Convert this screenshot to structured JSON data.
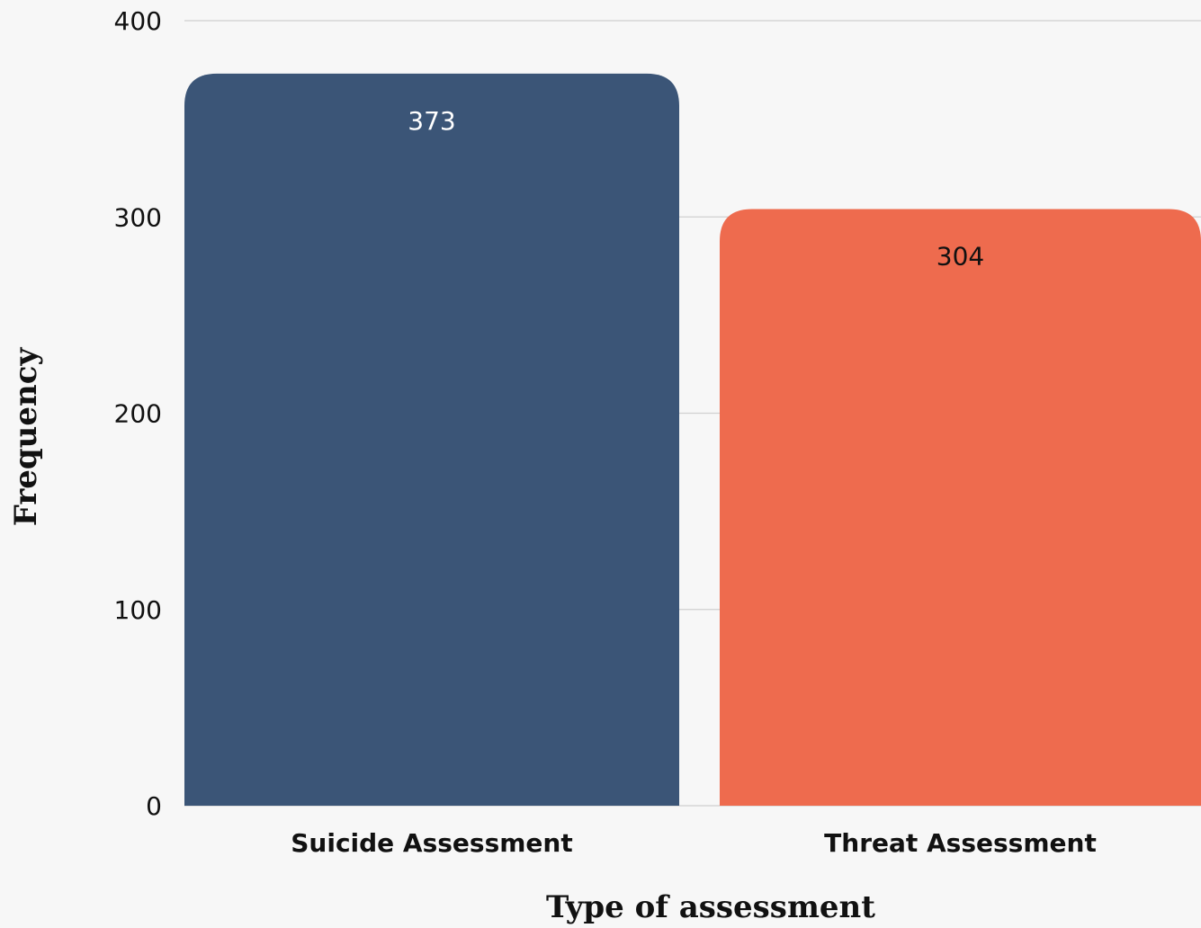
{
  "chart_data": {
    "type": "bar",
    "categories": [
      "Suicide Assessment",
      "Threat Assessment"
    ],
    "values": [
      373,
      304
    ],
    "data_labels": [
      "373",
      "304"
    ],
    "bar_colors": [
      "#3b5577",
      "#ee6b4e"
    ],
    "label_colors": [
      "#ffffff",
      "#111111"
    ],
    "title": "",
    "xlabel": "Type of assessment",
    "ylabel": "Frequency",
    "ylim": [
      0,
      400
    ],
    "yticks": [
      0,
      100,
      200,
      300,
      400
    ],
    "ytick_labels": [
      "0",
      "100",
      "200",
      "300",
      "400"
    ],
    "grid": true,
    "legend": "none"
  }
}
